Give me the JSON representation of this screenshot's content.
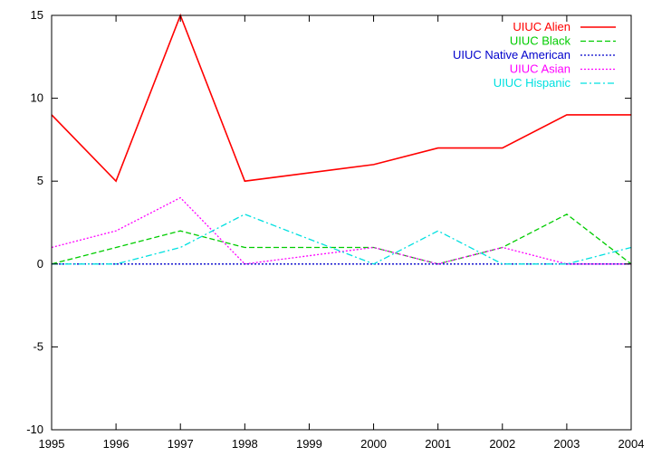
{
  "chart_data": {
    "type": "line",
    "title": "",
    "xlabel": "",
    "ylabel": "",
    "x": [
      1995,
      1996,
      1997,
      1998,
      1999,
      2000,
      2001,
      2002,
      2003,
      2004
    ],
    "xlim": [
      1995,
      2004
    ],
    "ylim": [
      -10,
      15
    ],
    "x_ticks": [
      "1995",
      "1996",
      "1997",
      "1998",
      "1999",
      "2000",
      "2001",
      "2002",
      "2003",
      "2004"
    ],
    "y_ticks": [
      "-10",
      "-5",
      "0",
      "5",
      "10",
      "15"
    ],
    "grid": false,
    "legend_position": "top-right",
    "series": [
      {
        "name": "UIUC Alien",
        "color": "#ff0000",
        "dash": "solid",
        "values": [
          9,
          5,
          15,
          5,
          null,
          6,
          7,
          7,
          9,
          9
        ]
      },
      {
        "name": "UIUC Black",
        "color": "#00cc00",
        "dash": "dashed",
        "values": [
          0,
          null,
          2,
          1,
          null,
          1,
          0,
          1,
          3,
          0
        ]
      },
      {
        "name": "UIUC Native American",
        "color": "#0000cc",
        "dash": "dotted",
        "values": [
          0,
          0,
          0,
          0,
          0,
          0,
          0,
          0,
          0,
          0
        ]
      },
      {
        "name": "UIUC Asian",
        "color": "#ff00ff",
        "dash": "dotted",
        "values": [
          1,
          2,
          4,
          0,
          null,
          1,
          0,
          1,
          0,
          0
        ]
      },
      {
        "name": "UIUC Hispanic",
        "color": "#00e0e0",
        "dash": "dashdot",
        "values": [
          0,
          0,
          1,
          3,
          null,
          0,
          2,
          0,
          0,
          1
        ]
      }
    ]
  }
}
